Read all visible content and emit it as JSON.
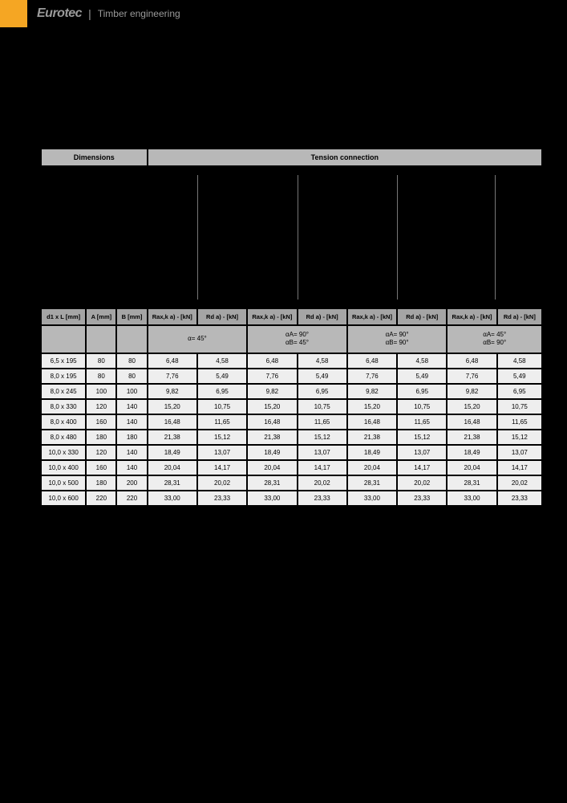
{
  "header": {
    "brand": "Eurotec",
    "divider": "|",
    "tagline": "Timber engineering"
  },
  "table": {
    "top_headers": {
      "dimensions": "Dimensions",
      "tension": "Tension connection"
    },
    "col_headers": {
      "c0": "d1 x L [mm]",
      "c1": "A [mm]",
      "c2": "B [mm]",
      "c3": "Rax,k a) - [kN]",
      "c4": "Rd a) - [kN]",
      "c5": "Rax,k a) - [kN]",
      "c6": "Rd a) - [kN]",
      "c7": "Rax,k a) - [kN]",
      "c8": "Rd a) - [kN]",
      "c9": "Rax,k a) - [kN]",
      "c10": "Rd a) - [kN]"
    },
    "angles": {
      "a1": "α= 45°",
      "a2_l1": "αA= 90°",
      "a2_l2": "αB= 45°",
      "a3_l1": "αA= 90°",
      "a3_l2": "αB= 90°",
      "a4_l1": "αA= 45°",
      "a4_l2": "αB= 90°"
    },
    "rows": [
      [
        "6,5 x 195",
        "80",
        "80",
        "6,48",
        "4,58",
        "6,48",
        "4,58",
        "6,48",
        "4,58",
        "6,48",
        "4,58"
      ],
      [
        "8,0 x 195",
        "80",
        "80",
        "7,76",
        "5,49",
        "7,76",
        "5,49",
        "7,76",
        "5,49",
        "7,76",
        "5,49"
      ],
      [
        "8,0 x 245",
        "100",
        "100",
        "9,82",
        "6,95",
        "9,82",
        "6,95",
        "9,82",
        "6,95",
        "9,82",
        "6,95"
      ],
      [
        "8,0 x 330",
        "120",
        "140",
        "15,20",
        "10,75",
        "15,20",
        "10,75",
        "15,20",
        "10,75",
        "15,20",
        "10,75"
      ],
      [
        "8,0 x 400",
        "160",
        "140",
        "16,48",
        "11,65",
        "16,48",
        "11,65",
        "16,48",
        "11,65",
        "16,48",
        "11,65"
      ],
      [
        "8,0 x 480",
        "180",
        "180",
        "21,38",
        "15,12",
        "21,38",
        "15,12",
        "21,38",
        "15,12",
        "21,38",
        "15,12"
      ],
      [
        "10,0 x 330",
        "120",
        "140",
        "18,49",
        "13,07",
        "18,49",
        "13,07",
        "18,49",
        "13,07",
        "18,49",
        "13,07"
      ],
      [
        "10,0 x 400",
        "160",
        "140",
        "20,04",
        "14,17",
        "20,04",
        "14,17",
        "20,04",
        "14,17",
        "20,04",
        "14,17"
      ],
      [
        "10,0 x 500",
        "180",
        "200",
        "28,31",
        "20,02",
        "28,31",
        "20,02",
        "28,31",
        "20,02",
        "28,31",
        "20,02"
      ],
      [
        "10,0 x 600",
        "220",
        "220",
        "33,00",
        "23,33",
        "33,00",
        "23,33",
        "33,00",
        "23,33",
        "33,00",
        "23,33"
      ]
    ]
  },
  "styling": {
    "page_bg": "#000000",
    "header_orange": "#f5a623",
    "header_text_color": "#9a9a9a",
    "table_header_bg": "#b8b8b8",
    "table_subheader_bg": "#a5a5a5",
    "table_row_bg": "#eeeeee",
    "border_spacing": 2,
    "font_main": "Arial",
    "header_font_size_pt": 9,
    "cell_font_size_pt": 8
  }
}
